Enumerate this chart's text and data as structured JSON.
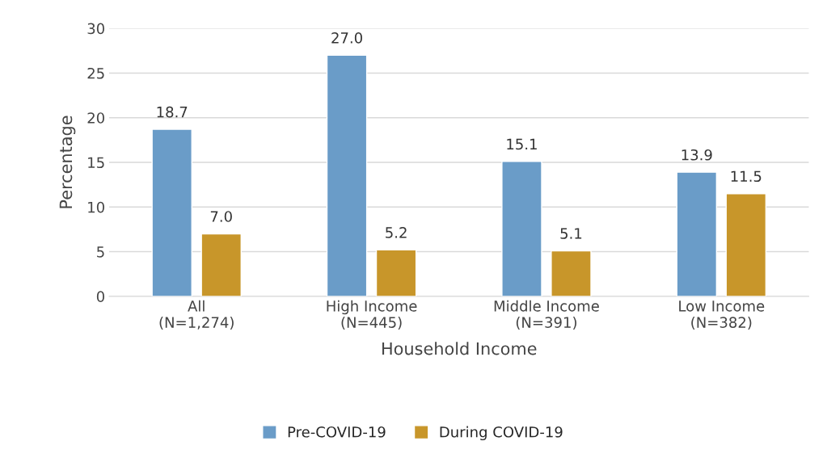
{
  "chart_data": {
    "type": "bar",
    "xlabel": "Household Income",
    "ylabel": "Percentage",
    "categories": [
      "All\n(N=1,274)",
      "High Income\n(N=445)",
      "Middle Income\n(N=391)",
      "Low Income\n(N=382)"
    ],
    "series": [
      {
        "name": "Pre-COVID-19",
        "color": "#6a9cc8",
        "values": [
          18.7,
          27.0,
          15.1,
          13.9
        ]
      },
      {
        "name": "During COVID-19",
        "color": "#c8962a",
        "values": [
          7.0,
          5.2,
          5.1,
          11.5
        ]
      }
    ],
    "value_labels": [
      [
        "18.7",
        "27.0",
        "15.1",
        "13.9"
      ],
      [
        "7.0",
        "5.2",
        "5.1",
        "11.5"
      ]
    ],
    "ylim": [
      0,
      30
    ],
    "yticks": [
      0,
      5,
      10,
      15,
      20,
      25,
      30
    ],
    "grid": "y",
    "legend": "bottom"
  }
}
